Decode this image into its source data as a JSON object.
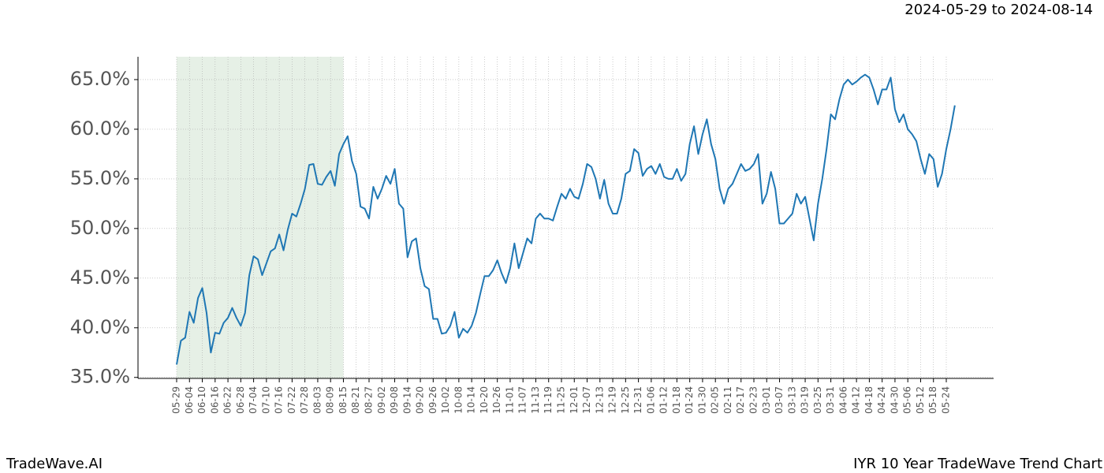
{
  "chart_data": {
    "type": "line",
    "date_range": "2024-05-29 to 2024-08-14",
    "footer_left": "TradeWave.AI",
    "footer_right": "IYR 10 Year TradeWave Trend Chart",
    "color": "#1f77b4",
    "highlight": {
      "start": 0,
      "end": 39,
      "color": "#e6f0e6"
    },
    "grid": true,
    "categories": [
      "05-29",
      null,
      null,
      "06-04",
      null,
      null,
      "06-10",
      null,
      null,
      "06-16",
      null,
      null,
      "06-22",
      null,
      null,
      "06-28",
      null,
      null,
      "07-04",
      null,
      null,
      "07-10",
      null,
      null,
      "07-16",
      null,
      null,
      "07-22",
      null,
      null,
      "07-28",
      null,
      null,
      "08-03",
      null,
      null,
      "08-09",
      null,
      null,
      "08-15",
      null,
      null,
      "08-21",
      null,
      null,
      "08-27",
      null,
      null,
      "09-02",
      null,
      null,
      "09-08",
      null,
      null,
      "09-14",
      null,
      null,
      "09-20",
      null,
      null,
      "09-26",
      null,
      null,
      "10-02",
      null,
      null,
      "10-08",
      null,
      null,
      "10-14",
      null,
      null,
      "10-20",
      null,
      null,
      "10-26",
      null,
      null,
      "11-01",
      null,
      null,
      "11-07",
      null,
      null,
      "11-13",
      null,
      null,
      "11-19",
      null,
      null,
      "11-25",
      null,
      null,
      "12-01",
      null,
      null,
      "12-07",
      null,
      null,
      "12-13",
      null,
      null,
      "12-19",
      null,
      null,
      "12-25",
      null,
      null,
      "12-31",
      null,
      null,
      "01-06",
      null,
      null,
      "01-12",
      null,
      null,
      "01-18",
      null,
      null,
      "01-24",
      null,
      null,
      "01-30",
      null,
      null,
      "02-05",
      null,
      null,
      "02-11",
      null,
      null,
      "02-17",
      null,
      null,
      "02-23",
      null,
      null,
      "03-01",
      null,
      null,
      "03-07",
      null,
      null,
      "03-13",
      null,
      null,
      "03-19",
      null,
      null,
      "03-25",
      null,
      null,
      "03-31",
      null,
      null,
      "04-06",
      null,
      null,
      "04-12",
      null,
      null,
      "04-18",
      null,
      null,
      "04-24",
      null,
      null,
      "04-30",
      null,
      null,
      "05-06",
      null,
      null,
      "05-12",
      null,
      null,
      "05-18",
      null,
      null,
      "05-24",
      null,
      null
    ],
    "values": [
      36.3,
      38.7,
      39,
      41.6,
      40.5,
      43,
      44,
      41.5,
      37.5,
      39.5,
      39.4,
      40.5,
      41,
      42,
      41,
      40.2,
      41.5,
      45.3,
      47.2,
      46.9,
      45.3,
      46.5,
      47.7,
      48,
      49.4,
      47.8,
      49.9,
      51.5,
      51.2,
      52.5,
      54,
      56.4,
      56.5,
      54.5,
      54.4,
      55.2,
      55.8,
      54.3,
      57.5,
      58.5,
      59.3,
      56.8,
      55.5,
      52.2,
      52,
      51,
      54.2,
      53,
      54,
      55.3,
      54.5,
      56,
      52.5,
      52,
      47.1,
      48.7,
      49,
      46,
      44.2,
      43.9,
      40.9,
      40.9,
      39.4,
      39.5,
      40.2,
      41.6,
      39,
      39.9,
      39.5,
      40.2,
      41.5,
      43.4,
      45.2,
      45.2,
      45.8,
      46.8,
      45.5,
      44.5,
      46,
      48.5,
      46,
      47.5,
      49,
      48.5,
      51,
      51.5,
      51,
      51,
      50.8,
      52.2,
      53.5,
      53,
      54,
      53.2,
      53,
      54.5,
      56.5,
      56.2,
      55,
      53,
      54.9,
      52.5,
      51.5,
      51.5,
      53,
      55.5,
      55.8,
      58,
      57.6,
      55.3,
      56,
      56.3,
      55.5,
      56.5,
      55.2,
      55,
      55,
      56,
      54.8,
      55.5,
      58.5,
      60.3,
      57.5,
      59.5,
      61,
      58.5,
      57,
      54,
      52.5,
      54,
      54.5,
      55.5,
      56.5,
      55.8,
      56,
      56.5,
      57.5,
      52.5,
      53.5,
      55.7,
      54,
      50.5,
      50.5,
      51,
      51.5,
      53.5,
      52.5,
      53.2,
      51,
      48.8,
      52.5,
      55,
      58,
      61.5,
      61,
      63,
      64.5,
      65,
      64.5,
      64.8,
      65.2,
      65.5,
      65.2,
      64,
      62.5,
      64,
      64,
      65.2,
      62,
      60.7,
      61.5,
      60,
      59.5,
      58.8,
      57,
      55.5,
      57.5,
      57,
      54.2,
      55.5,
      58,
      60,
      62.4
    ],
    "ylim": [
      34.9,
      67.3
    ],
    "yticks": [
      {
        "value": 35,
        "label": "35.0%"
      },
      {
        "value": 40,
        "label": "40.0%"
      },
      {
        "value": 45,
        "label": "45.0%"
      },
      {
        "value": 50,
        "label": "50.0%"
      },
      {
        "value": 55,
        "label": "55.0%"
      },
      {
        "value": 60,
        "label": "60.0%"
      },
      {
        "value": 65,
        "label": "65.0%"
      }
    ]
  }
}
